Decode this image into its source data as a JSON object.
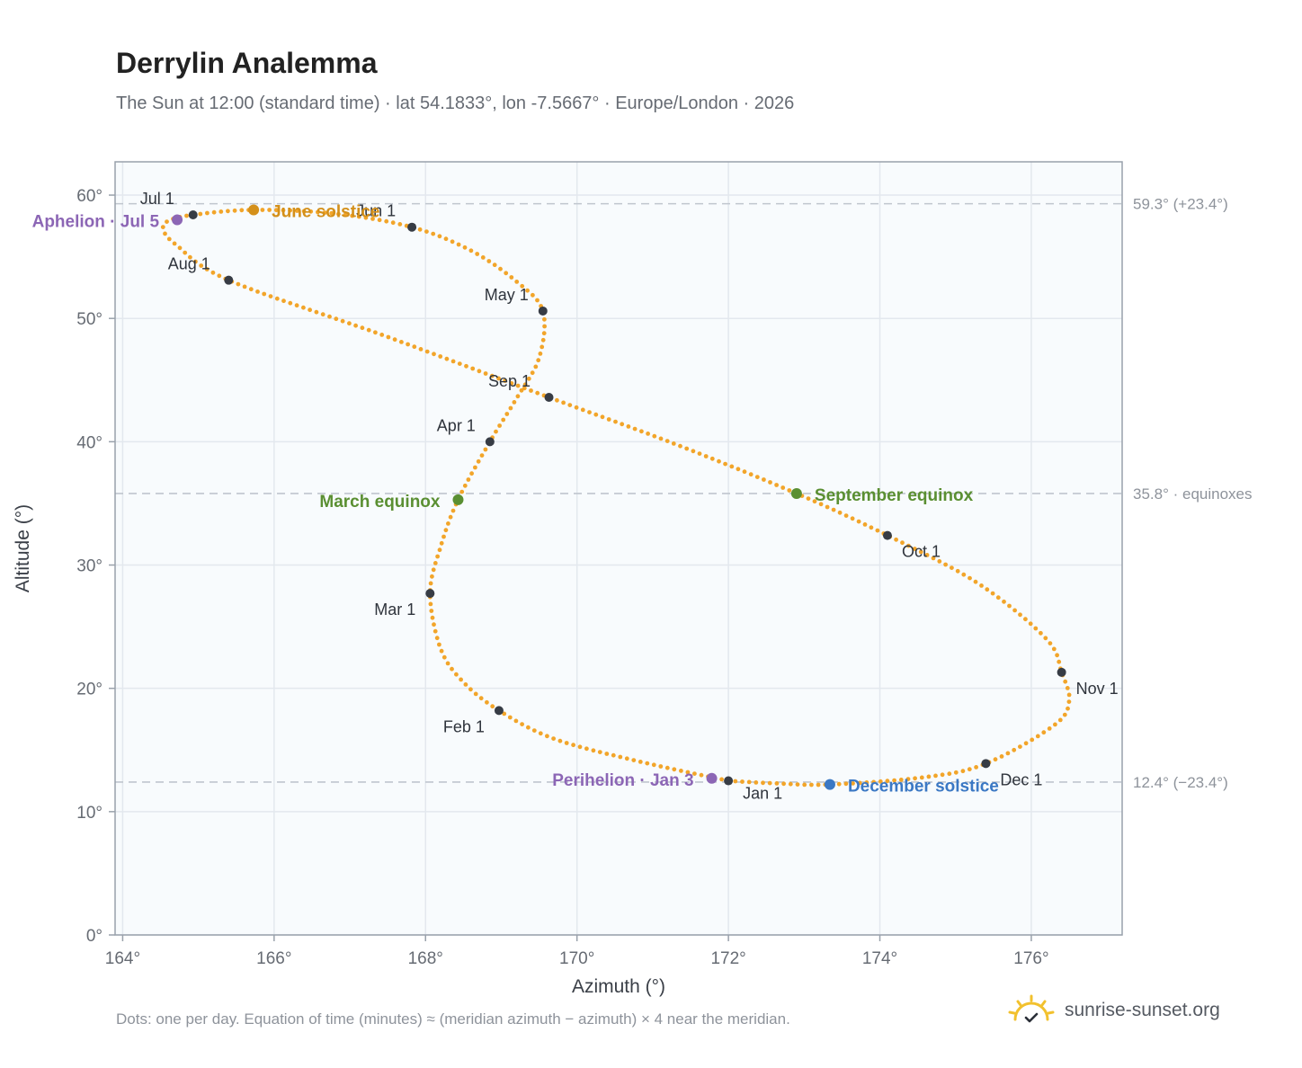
{
  "page": {
    "title": "Derrylin Analemma",
    "subtitle": "The Sun at 12:00 (standard time) · lat 54.1833°, lon -7.5667° · Europe/London · 2026",
    "footnote": "Dots: one per day. Equation of time (minutes) ≈ (meridian azimuth − azimuth) × 4 near the meridian.",
    "brand": "sunrise-sunset.org"
  },
  "colors": {
    "curve": "#f2a52a",
    "month_marker": "#373c45",
    "solstice_june": "#d4901a",
    "solstice_december": "#3b78c4",
    "equinox": "#5a8f32",
    "apsis": "#8c66b5",
    "reference_line": "#c0c6ce",
    "plot_background": "#f8fbfd"
  },
  "chart_data": {
    "type": "scatter",
    "title": "Derrylin Analemma",
    "xlabel": "Azimuth (°)",
    "ylabel": "Altitude (°)",
    "xlim": [
      163.9,
      177.2
    ],
    "ylim": [
      0,
      62.7
    ],
    "x_ticks": [
      164,
      166,
      168,
      170,
      172,
      174,
      176
    ],
    "x_tick_labels": [
      "164°",
      "166°",
      "168°",
      "170°",
      "172°",
      "174°",
      "176°"
    ],
    "y_ticks": [
      0,
      10,
      20,
      30,
      40,
      50,
      60
    ],
    "y_tick_labels": [
      "0°",
      "10°",
      "20°",
      "30°",
      "40°",
      "50°",
      "60°"
    ],
    "grid": true,
    "reference_lines": [
      {
        "y": 59.3,
        "label": "59.3° (+23.4°)"
      },
      {
        "y": 35.8,
        "label": "35.8° · equinoxes"
      },
      {
        "y": 12.4,
        "label": "12.4° (−23.4°)"
      }
    ],
    "month_markers": [
      {
        "label": "Jan 1",
        "az": 172.0,
        "alt": 12.5
      },
      {
        "label": "Feb 1",
        "az": 168.97,
        "alt": 18.2
      },
      {
        "label": "Mar 1",
        "az": 168.06,
        "alt": 27.7
      },
      {
        "label": "Apr 1",
        "az": 168.85,
        "alt": 40.0
      },
      {
        "label": "May 1",
        "az": 169.55,
        "alt": 50.6
      },
      {
        "label": "Jun 1",
        "az": 167.82,
        "alt": 57.4
      },
      {
        "label": "Jul 1",
        "az": 164.93,
        "alt": 58.4
      },
      {
        "label": "Aug 1",
        "az": 165.4,
        "alt": 53.1
      },
      {
        "label": "Sep 1",
        "az": 169.63,
        "alt": 43.6
      },
      {
        "label": "Oct 1",
        "az": 174.1,
        "alt": 32.4
      },
      {
        "label": "Nov 1",
        "az": 176.4,
        "alt": 21.3
      },
      {
        "label": "Dec 1",
        "az": 175.4,
        "alt": 13.9
      }
    ],
    "events": [
      {
        "label": "June solstice",
        "az": 165.73,
        "alt": 58.8,
        "kind": "solstice_june"
      },
      {
        "label": "December solstice",
        "az": 173.34,
        "alt": 12.2,
        "kind": "solstice_december"
      },
      {
        "label": "March equinox",
        "az": 168.43,
        "alt": 35.3,
        "kind": "equinox"
      },
      {
        "label": "September equinox",
        "az": 172.9,
        "alt": 35.8,
        "kind": "equinox"
      },
      {
        "label": "Aphelion · Jul 5",
        "az": 164.72,
        "alt": 58.0,
        "kind": "apsis"
      },
      {
        "label": "Perihelion · Jan 3",
        "az": 171.78,
        "alt": 12.7,
        "kind": "apsis"
      }
    ],
    "curve_anchor_points": [
      [
        172.0,
        12.5
      ],
      [
        170.8,
        14.1
      ],
      [
        169.7,
        15.9
      ],
      [
        168.97,
        18.2
      ],
      [
        168.5,
        20.5
      ],
      [
        168.2,
        23.2
      ],
      [
        168.06,
        27.7
      ],
      [
        168.2,
        31.5
      ],
      [
        168.43,
        35.3
      ],
      [
        168.85,
        40.0
      ],
      [
        169.2,
        43.5
      ],
      [
        169.5,
        46.8
      ],
      [
        169.55,
        50.6
      ],
      [
        169.2,
        53.0
      ],
      [
        168.6,
        55.5
      ],
      [
        167.82,
        57.4
      ],
      [
        166.8,
        58.5
      ],
      [
        165.73,
        58.8
      ],
      [
        164.93,
        58.4
      ],
      [
        164.6,
        57.9
      ],
      [
        164.54,
        57.2
      ],
      [
        164.7,
        56.0
      ],
      [
        165.4,
        53.1
      ],
      [
        167.5,
        48.5
      ],
      [
        169.63,
        43.6
      ],
      [
        171.3,
        39.8
      ],
      [
        172.9,
        35.8
      ],
      [
        174.1,
        32.4
      ],
      [
        175.3,
        28.5
      ],
      [
        176.2,
        24.0
      ],
      [
        176.4,
        21.3
      ],
      [
        176.5,
        19.0
      ],
      [
        176.3,
        17.0
      ],
      [
        175.4,
        13.9
      ],
      [
        174.6,
        12.8
      ],
      [
        173.34,
        12.2
      ],
      [
        172.6,
        12.3
      ],
      [
        172.0,
        12.5
      ]
    ]
  }
}
